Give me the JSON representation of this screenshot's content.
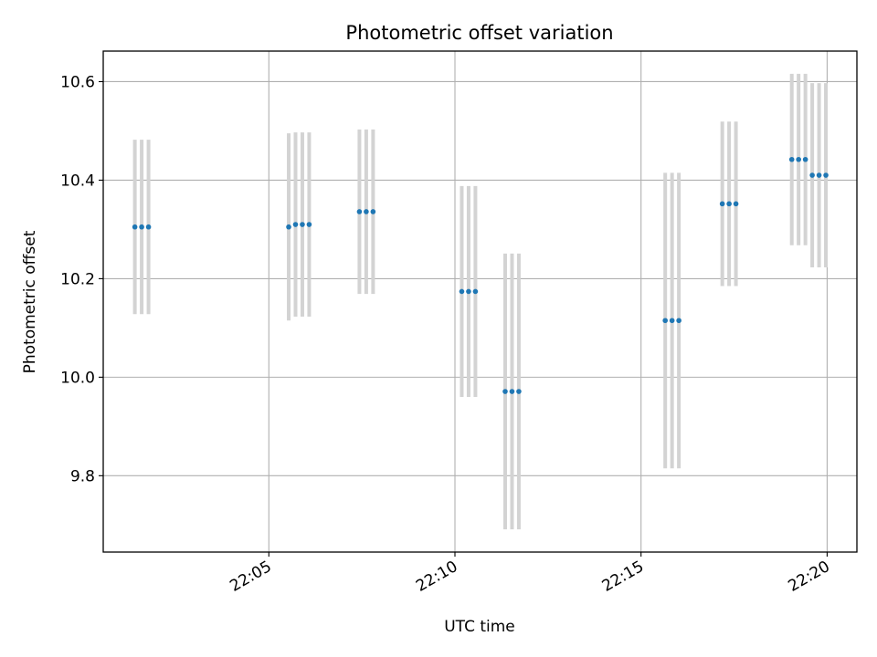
{
  "chart_data": {
    "type": "scatter",
    "title": "Photometric offset variation",
    "xlabel": "UTC time",
    "ylabel": "Photometric offset",
    "grid": true,
    "xlim": [
      "22:00:33",
      "22:20:48"
    ],
    "ylim": [
      9.645,
      10.662
    ],
    "xticks": [
      "22:05",
      "22:10",
      "22:15",
      "22:20"
    ],
    "yticks": [
      9.8,
      10.0,
      10.2,
      10.4,
      10.6
    ],
    "point_color": "#1f77b4",
    "errorbar_color": "#d3d3d3",
    "series": [
      {
        "points": [
          {
            "x": "22:01:24",
            "y": 10.305,
            "err": 0.177
          },
          {
            "x": "22:01:35",
            "y": 10.305,
            "err": 0.177
          },
          {
            "x": "22:01:46",
            "y": 10.305,
            "err": 0.177
          },
          {
            "x": "22:05:32",
            "y": 10.305,
            "err": 0.19
          },
          {
            "x": "22:05:43",
            "y": 10.31,
            "err": 0.187
          },
          {
            "x": "22:05:54",
            "y": 10.31,
            "err": 0.187
          },
          {
            "x": "22:06:05",
            "y": 10.31,
            "err": 0.187
          },
          {
            "x": "22:07:26",
            "y": 10.336,
            "err": 0.167
          },
          {
            "x": "22:07:37",
            "y": 10.336,
            "err": 0.167
          },
          {
            "x": "22:07:48",
            "y": 10.336,
            "err": 0.167
          },
          {
            "x": "22:10:11",
            "y": 10.174,
            "err": 0.214
          },
          {
            "x": "22:10:22",
            "y": 10.174,
            "err": 0.214
          },
          {
            "x": "22:10:33",
            "y": 10.174,
            "err": 0.214
          },
          {
            "x": "22:11:21",
            "y": 9.971,
            "err": 0.28
          },
          {
            "x": "22:11:32",
            "y": 9.971,
            "err": 0.28
          },
          {
            "x": "22:11:43",
            "y": 9.971,
            "err": 0.28
          },
          {
            "x": "22:15:39",
            "y": 10.115,
            "err": 0.3
          },
          {
            "x": "22:15:50",
            "y": 10.115,
            "err": 0.3
          },
          {
            "x": "22:16:01",
            "y": 10.115,
            "err": 0.3
          },
          {
            "x": "22:17:11",
            "y": 10.352,
            "err": 0.167
          },
          {
            "x": "22:17:22",
            "y": 10.352,
            "err": 0.167
          },
          {
            "x": "22:17:33",
            "y": 10.352,
            "err": 0.167
          },
          {
            "x": "22:19:03",
            "y": 10.442,
            "err": 0.174
          },
          {
            "x": "22:19:14",
            "y": 10.442,
            "err": 0.174
          },
          {
            "x": "22:19:25",
            "y": 10.442,
            "err": 0.174
          },
          {
            "x": "22:19:36",
            "y": 10.41,
            "err": 0.187
          },
          {
            "x": "22:19:47",
            "y": 10.41,
            "err": 0.187
          },
          {
            "x": "22:19:58",
            "y": 10.41,
            "err": 0.187
          }
        ]
      }
    ]
  }
}
